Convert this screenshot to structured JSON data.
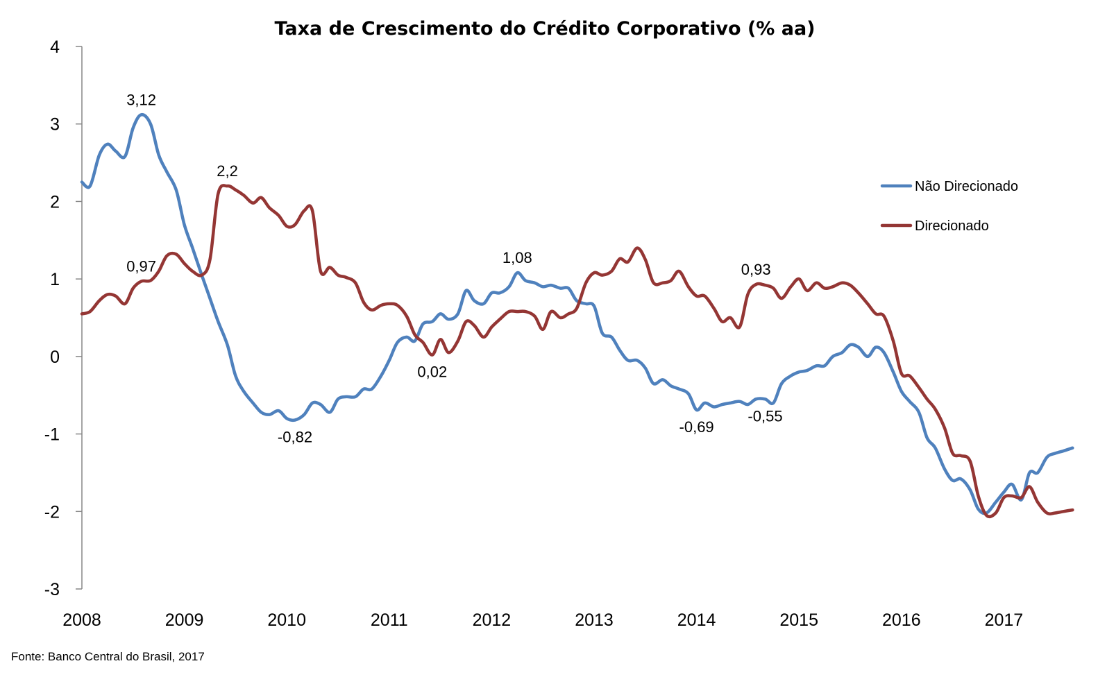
{
  "chart_data": {
    "type": "line",
    "title": "Taxa de Crescimento do Crédito Corporativo (% aa)",
    "xlabel": "",
    "ylabel": "",
    "ylim": [
      -3,
      4
    ],
    "xlim": [
      2008,
      2017.7
    ],
    "y_ticks": [
      4,
      3,
      2,
      1,
      0,
      -1,
      -2,
      -3
    ],
    "x_ticks": [
      "2008",
      "2009",
      "2010",
      "2011",
      "2012",
      "2013",
      "2014",
      "2015",
      "2016",
      "2017"
    ],
    "grid": false,
    "legend_position": "right",
    "source": "Fonte: Banco Central do Brasil, 2017",
    "series": [
      {
        "name": "Não Direcionado",
        "color": "#4F81BD",
        "points": [
          [
            2008.0,
            2.25
          ],
          [
            2008.08,
            2.2
          ],
          [
            2008.17,
            2.6
          ],
          [
            2008.25,
            2.74
          ],
          [
            2008.33,
            2.65
          ],
          [
            2008.42,
            2.58
          ],
          [
            2008.5,
            2.95
          ],
          [
            2008.58,
            3.12
          ],
          [
            2008.67,
            3.0
          ],
          [
            2008.75,
            2.6
          ],
          [
            2008.83,
            2.38
          ],
          [
            2008.92,
            2.15
          ],
          [
            2009.0,
            1.7
          ],
          [
            2009.08,
            1.4
          ],
          [
            2009.17,
            1.05
          ],
          [
            2009.25,
            0.75
          ],
          [
            2009.33,
            0.45
          ],
          [
            2009.42,
            0.15
          ],
          [
            2009.5,
            -0.25
          ],
          [
            2009.58,
            -0.45
          ],
          [
            2009.67,
            -0.6
          ],
          [
            2009.75,
            -0.72
          ],
          [
            2009.83,
            -0.75
          ],
          [
            2009.92,
            -0.7
          ],
          [
            2010.0,
            -0.8
          ],
          [
            2010.08,
            -0.82
          ],
          [
            2010.17,
            -0.75
          ],
          [
            2010.25,
            -0.6
          ],
          [
            2010.33,
            -0.62
          ],
          [
            2010.42,
            -0.72
          ],
          [
            2010.5,
            -0.55
          ],
          [
            2010.58,
            -0.52
          ],
          [
            2010.67,
            -0.52
          ],
          [
            2010.75,
            -0.42
          ],
          [
            2010.83,
            -0.42
          ],
          [
            2010.92,
            -0.25
          ],
          [
            2011.0,
            -0.05
          ],
          [
            2011.08,
            0.18
          ],
          [
            2011.17,
            0.25
          ],
          [
            2011.25,
            0.2
          ],
          [
            2011.33,
            0.42
          ],
          [
            2011.42,
            0.45
          ],
          [
            2011.5,
            0.55
          ],
          [
            2011.58,
            0.48
          ],
          [
            2011.67,
            0.55
          ],
          [
            2011.75,
            0.85
          ],
          [
            2011.83,
            0.72
          ],
          [
            2011.92,
            0.68
          ],
          [
            2012.0,
            0.82
          ],
          [
            2012.08,
            0.82
          ],
          [
            2012.17,
            0.9
          ],
          [
            2012.25,
            1.08
          ],
          [
            2012.33,
            0.98
          ],
          [
            2012.42,
            0.95
          ],
          [
            2012.5,
            0.9
          ],
          [
            2012.58,
            0.92
          ],
          [
            2012.67,
            0.88
          ],
          [
            2012.75,
            0.88
          ],
          [
            2012.83,
            0.72
          ],
          [
            2012.92,
            0.68
          ],
          [
            2013.0,
            0.65
          ],
          [
            2013.08,
            0.3
          ],
          [
            2013.17,
            0.25
          ],
          [
            2013.25,
            0.08
          ],
          [
            2013.33,
            -0.05
          ],
          [
            2013.42,
            -0.05
          ],
          [
            2013.5,
            -0.15
          ],
          [
            2013.58,
            -0.35
          ],
          [
            2013.67,
            -0.3
          ],
          [
            2013.75,
            -0.38
          ],
          [
            2013.83,
            -0.42
          ],
          [
            2013.92,
            -0.48
          ],
          [
            2014.0,
            -0.69
          ],
          [
            2014.08,
            -0.6
          ],
          [
            2014.17,
            -0.65
          ],
          [
            2014.25,
            -0.62
          ],
          [
            2014.33,
            -0.6
          ],
          [
            2014.42,
            -0.58
          ],
          [
            2014.5,
            -0.62
          ],
          [
            2014.58,
            -0.55
          ],
          [
            2014.67,
            -0.55
          ],
          [
            2014.75,
            -0.6
          ],
          [
            2014.83,
            -0.35
          ],
          [
            2014.92,
            -0.25
          ],
          [
            2015.0,
            -0.2
          ],
          [
            2015.08,
            -0.18
          ],
          [
            2015.17,
            -0.12
          ],
          [
            2015.25,
            -0.12
          ],
          [
            2015.33,
            0.0
          ],
          [
            2015.42,
            0.05
          ],
          [
            2015.5,
            0.15
          ],
          [
            2015.58,
            0.12
          ],
          [
            2015.67,
            0.0
          ],
          [
            2015.75,
            0.12
          ],
          [
            2015.83,
            0.05
          ],
          [
            2015.92,
            -0.2
          ],
          [
            2016.0,
            -0.45
          ],
          [
            2016.08,
            -0.58
          ],
          [
            2016.17,
            -0.72
          ],
          [
            2016.25,
            -1.05
          ],
          [
            2016.33,
            -1.18
          ],
          [
            2016.42,
            -1.45
          ],
          [
            2016.5,
            -1.6
          ],
          [
            2016.58,
            -1.58
          ],
          [
            2016.67,
            -1.72
          ],
          [
            2016.75,
            -1.97
          ],
          [
            2016.83,
            -2.02
          ],
          [
            2016.92,
            -1.88
          ],
          [
            2017.0,
            -1.75
          ],
          [
            2017.08,
            -1.65
          ],
          [
            2017.17,
            -1.85
          ],
          [
            2017.25,
            -1.5
          ],
          [
            2017.33,
            -1.5
          ],
          [
            2017.42,
            -1.3
          ],
          [
            2017.5,
            -1.25
          ],
          [
            2017.58,
            -1.22
          ],
          [
            2017.67,
            -1.18
          ]
        ]
      },
      {
        "name": "Direcionado",
        "color": "#943634",
        "points": [
          [
            2008.0,
            0.55
          ],
          [
            2008.08,
            0.58
          ],
          [
            2008.17,
            0.72
          ],
          [
            2008.25,
            0.8
          ],
          [
            2008.33,
            0.78
          ],
          [
            2008.42,
            0.68
          ],
          [
            2008.5,
            0.88
          ],
          [
            2008.58,
            0.97
          ],
          [
            2008.67,
            0.98
          ],
          [
            2008.75,
            1.1
          ],
          [
            2008.83,
            1.3
          ],
          [
            2008.92,
            1.32
          ],
          [
            2009.0,
            1.2
          ],
          [
            2009.08,
            1.1
          ],
          [
            2009.17,
            1.05
          ],
          [
            2009.25,
            1.25
          ],
          [
            2009.33,
            2.1
          ],
          [
            2009.42,
            2.2
          ],
          [
            2009.5,
            2.15
          ],
          [
            2009.58,
            2.08
          ],
          [
            2009.67,
            1.98
          ],
          [
            2009.75,
            2.05
          ],
          [
            2009.83,
            1.92
          ],
          [
            2009.92,
            1.82
          ],
          [
            2010.0,
            1.68
          ],
          [
            2010.08,
            1.7
          ],
          [
            2010.17,
            1.88
          ],
          [
            2010.25,
            1.88
          ],
          [
            2010.33,
            1.1
          ],
          [
            2010.42,
            1.15
          ],
          [
            2010.5,
            1.05
          ],
          [
            2010.58,
            1.02
          ],
          [
            2010.67,
            0.95
          ],
          [
            2010.75,
            0.7
          ],
          [
            2010.83,
            0.6
          ],
          [
            2010.92,
            0.66
          ],
          [
            2011.0,
            0.68
          ],
          [
            2011.08,
            0.66
          ],
          [
            2011.17,
            0.52
          ],
          [
            2011.25,
            0.28
          ],
          [
            2011.33,
            0.18
          ],
          [
            2011.42,
            0.02
          ],
          [
            2011.5,
            0.22
          ],
          [
            2011.58,
            0.05
          ],
          [
            2011.67,
            0.2
          ],
          [
            2011.75,
            0.45
          ],
          [
            2011.83,
            0.4
          ],
          [
            2011.92,
            0.25
          ],
          [
            2012.0,
            0.38
          ],
          [
            2012.08,
            0.48
          ],
          [
            2012.17,
            0.58
          ],
          [
            2012.25,
            0.58
          ],
          [
            2012.33,
            0.58
          ],
          [
            2012.42,
            0.52
          ],
          [
            2012.5,
            0.35
          ],
          [
            2012.58,
            0.58
          ],
          [
            2012.67,
            0.5
          ],
          [
            2012.75,
            0.55
          ],
          [
            2012.83,
            0.62
          ],
          [
            2012.92,
            0.95
          ],
          [
            2013.0,
            1.08
          ],
          [
            2013.08,
            1.05
          ],
          [
            2013.17,
            1.1
          ],
          [
            2013.25,
            1.26
          ],
          [
            2013.33,
            1.22
          ],
          [
            2013.42,
            1.4
          ],
          [
            2013.5,
            1.25
          ],
          [
            2013.58,
            0.95
          ],
          [
            2013.67,
            0.95
          ],
          [
            2013.75,
            0.98
          ],
          [
            2013.83,
            1.1
          ],
          [
            2013.92,
            0.9
          ],
          [
            2014.0,
            0.78
          ],
          [
            2014.08,
            0.78
          ],
          [
            2014.17,
            0.62
          ],
          [
            2014.25,
            0.45
          ],
          [
            2014.33,
            0.5
          ],
          [
            2014.42,
            0.38
          ],
          [
            2014.5,
            0.8
          ],
          [
            2014.58,
            0.93
          ],
          [
            2014.67,
            0.92
          ],
          [
            2014.75,
            0.88
          ],
          [
            2014.83,
            0.75
          ],
          [
            2014.92,
            0.9
          ],
          [
            2015.0,
            1.0
          ],
          [
            2015.08,
            0.85
          ],
          [
            2015.17,
            0.95
          ],
          [
            2015.25,
            0.88
          ],
          [
            2015.33,
            0.9
          ],
          [
            2015.42,
            0.95
          ],
          [
            2015.5,
            0.92
          ],
          [
            2015.58,
            0.82
          ],
          [
            2015.67,
            0.68
          ],
          [
            2015.75,
            0.55
          ],
          [
            2015.83,
            0.52
          ],
          [
            2015.92,
            0.2
          ],
          [
            2016.0,
            -0.22
          ],
          [
            2016.08,
            -0.25
          ],
          [
            2016.17,
            -0.4
          ],
          [
            2016.25,
            -0.55
          ],
          [
            2016.33,
            -0.68
          ],
          [
            2016.42,
            -0.92
          ],
          [
            2016.5,
            -1.25
          ],
          [
            2016.58,
            -1.28
          ],
          [
            2016.67,
            -1.35
          ],
          [
            2016.75,
            -1.8
          ],
          [
            2016.83,
            -2.05
          ],
          [
            2016.92,
            -2.02
          ],
          [
            2017.0,
            -1.82
          ],
          [
            2017.08,
            -1.8
          ],
          [
            2017.17,
            -1.82
          ],
          [
            2017.25,
            -1.68
          ],
          [
            2017.33,
            -1.88
          ],
          [
            2017.42,
            -2.02
          ],
          [
            2017.5,
            -2.02
          ],
          [
            2017.58,
            -2.0
          ],
          [
            2017.67,
            -1.98
          ]
        ]
      }
    ],
    "annotations": [
      {
        "text": "3,12",
        "x": 2008.58,
        "y": 3.12,
        "placement": "above"
      },
      {
        "text": "2,2",
        "x": 2009.42,
        "y": 2.2,
        "placement": "above"
      },
      {
        "text": "0,97",
        "x": 2008.58,
        "y": 0.97,
        "placement": "above"
      },
      {
        "text": "-0,82",
        "x": 2010.08,
        "y": -0.82,
        "placement": "below"
      },
      {
        "text": "0,02",
        "x": 2011.42,
        "y": 0.02,
        "placement": "below"
      },
      {
        "text": "1,08",
        "x": 2012.25,
        "y": 1.08,
        "placement": "above"
      },
      {
        "text": "-0,69",
        "x": 2014.0,
        "y": -0.69,
        "placement": "below"
      },
      {
        "text": "-0,55",
        "x": 2014.67,
        "y": -0.55,
        "placement": "below"
      },
      {
        "text": "0,93",
        "x": 2014.58,
        "y": 0.93,
        "placement": "above"
      }
    ]
  }
}
